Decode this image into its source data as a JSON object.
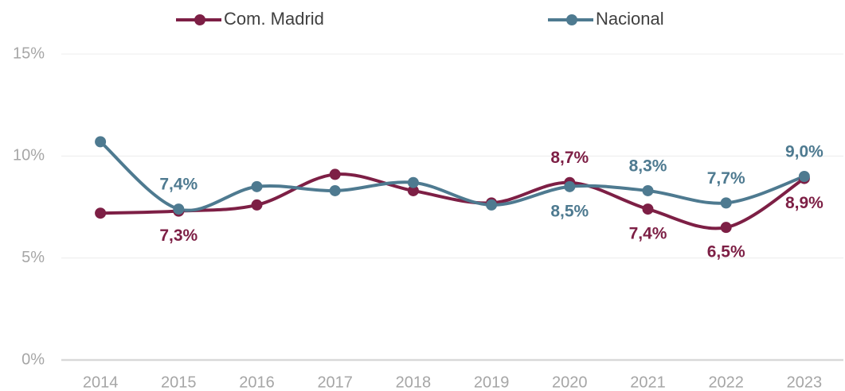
{
  "chart_data": {
    "type": "line",
    "categories": [
      "2014",
      "2015",
      "2016",
      "2017",
      "2018",
      "2019",
      "2020",
      "2021",
      "2022",
      "2023"
    ],
    "series": [
      {
        "name": "Com. Madrid",
        "color": "#7d1f45",
        "values": [
          7.2,
          7.3,
          7.6,
          9.1,
          8.3,
          7.7,
          8.7,
          7.4,
          6.5,
          8.9
        ],
        "value_labels": [
          null,
          "7,3%",
          null,
          null,
          null,
          null,
          "8,7%",
          "7,4%",
          "6,5%",
          "8,9%"
        ]
      },
      {
        "name": "Nacional",
        "color": "#4e7a90",
        "values": [
          10.7,
          7.4,
          8.5,
          8.3,
          8.7,
          7.6,
          8.5,
          8.3,
          7.7,
          9.0
        ],
        "value_labels": [
          null,
          "7,4%",
          null,
          null,
          null,
          null,
          "8,5%",
          "8,3%",
          "7,7%",
          "9,0%"
        ]
      }
    ],
    "ylim": [
      0,
      15
    ],
    "yticks": [
      {
        "value": 0,
        "label": "0%"
      },
      {
        "value": 5,
        "label": "5%"
      },
      {
        "value": 10,
        "label": "10%"
      },
      {
        "value": 15,
        "label": "15%"
      }
    ],
    "grid": true,
    "legend": "top"
  }
}
